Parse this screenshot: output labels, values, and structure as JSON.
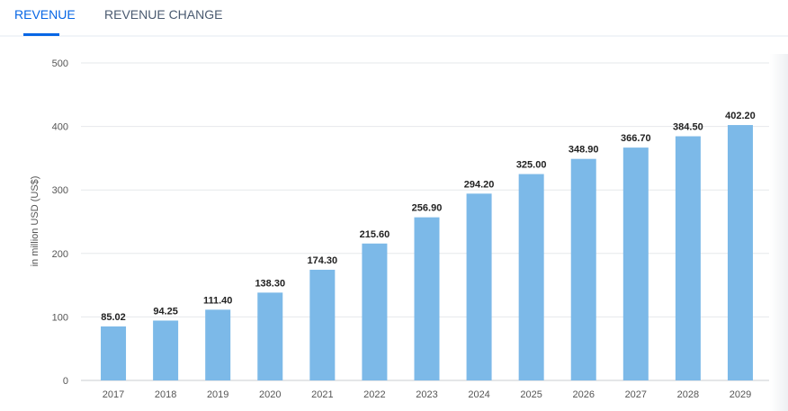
{
  "tabs": [
    {
      "label": "REVENUE",
      "active": true
    },
    {
      "label": "REVENUE CHANGE",
      "active": false
    }
  ],
  "chart_data": {
    "type": "bar",
    "categories": [
      "2017",
      "2018",
      "2019",
      "2020",
      "2021",
      "2022",
      "2023",
      "2024",
      "2025",
      "2026",
      "2027",
      "2028",
      "2029"
    ],
    "values": [
      85.02,
      94.25,
      111.4,
      138.3,
      174.3,
      215.6,
      256.9,
      294.2,
      325.0,
      348.9,
      366.7,
      384.5,
      402.2
    ],
    "labels": [
      "85.02",
      "94.25",
      "111.40",
      "138.30",
      "174.30",
      "215.60",
      "256.90",
      "294.20",
      "325.00",
      "348.90",
      "366.70",
      "384.50",
      "402.20"
    ],
    "ylabel": "in million USD (US$)",
    "ylim": [
      0,
      500
    ],
    "yticks": [
      "0",
      "100",
      "200",
      "300",
      "400",
      "500"
    ],
    "grid": true,
    "bar_color": "#7cb9e8"
  }
}
